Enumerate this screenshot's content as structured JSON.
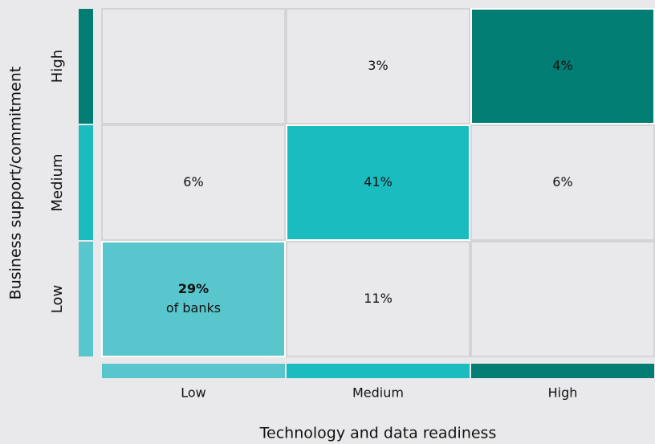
{
  "chart_data": {
    "type": "heatmap",
    "x_label": "Technology and data readiness",
    "y_label": "Business support/commitment",
    "categories": [
      "Low",
      "Medium",
      "High"
    ],
    "y_categories": [
      "High",
      "Medium",
      "Low"
    ],
    "values": [
      [
        null,
        3,
        4
      ],
      [
        6,
        41,
        6
      ],
      [
        29,
        11,
        null
      ]
    ],
    "value_labels": [
      [
        null,
        "3%",
        "4%"
      ],
      [
        "6%",
        "41%",
        "6%"
      ],
      [
        "29%",
        "11%",
        null
      ]
    ],
    "annotation": "of banks",
    "x_colors": [
      "#58c6cc",
      "#1bbcc0",
      "#017d73"
    ],
    "y_colors": [
      "#017d73",
      "#1bbcc0",
      "#58c6cc"
    ],
    "cell_colors": [
      [
        "#e9e9eb",
        "#e9e9eb",
        "#017d73"
      ],
      [
        "#e9e9eb",
        "#1bbcc0",
        "#e9e9eb"
      ],
      [
        "#58c6cc",
        "#e9e9eb",
        "#e9e9eb"
      ]
    ]
  }
}
